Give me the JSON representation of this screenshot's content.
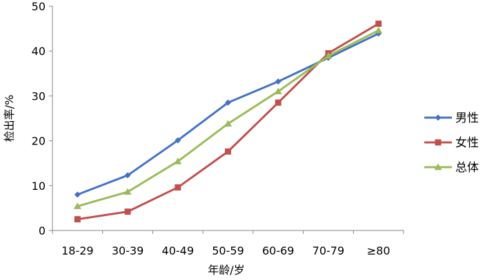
{
  "chart_data": {
    "type": "line",
    "title": "",
    "xlabel": "年龄/岁",
    "ylabel": "检出率/%",
    "categories": [
      "18-29",
      "30-39",
      "40-49",
      "50-59",
      "60-69",
      "70-79",
      "≥80"
    ],
    "ylim": [
      0,
      50
    ],
    "yticks": [
      0,
      10,
      20,
      30,
      40,
      50
    ],
    "grid": false,
    "legend_position": "right",
    "series": [
      {
        "name": "男性",
        "color": "#4472C4",
        "marker": "diamond",
        "values": [
          8.0,
          12.3,
          20.1,
          28.5,
          33.2,
          38.5,
          43.9
        ]
      },
      {
        "name": "女性",
        "color": "#C0504D",
        "marker": "square",
        "values": [
          2.5,
          4.2,
          9.6,
          17.6,
          28.5,
          39.5,
          46.1
        ]
      },
      {
        "name": "总体",
        "color": "#9BBB59",
        "marker": "triangle",
        "values": [
          5.4,
          8.6,
          15.4,
          23.8,
          31.0,
          38.9,
          44.6
        ]
      }
    ]
  }
}
